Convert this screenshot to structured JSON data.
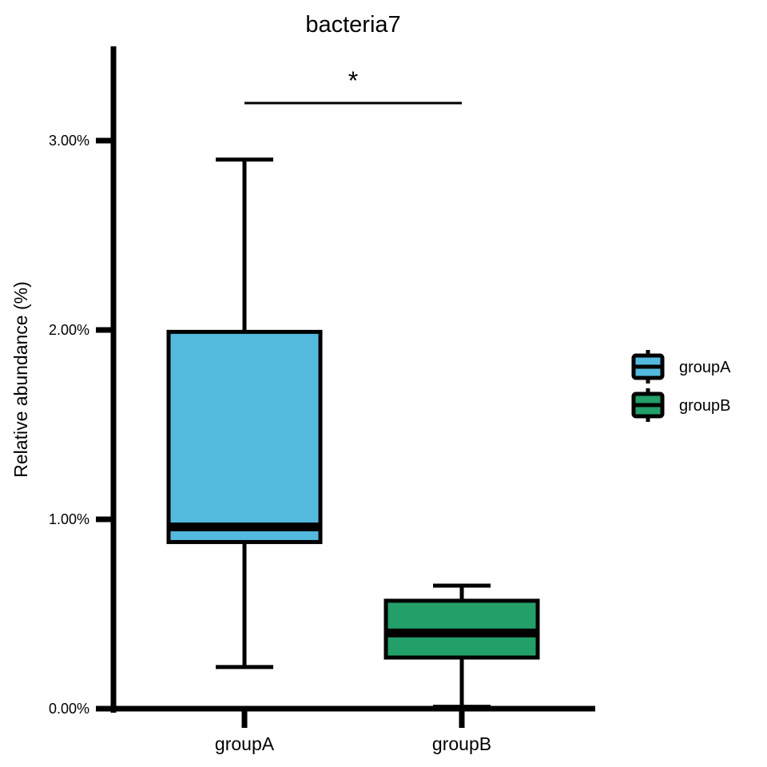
{
  "chart_data": {
    "type": "boxplot",
    "title": "bacteria7",
    "xlabel": "",
    "ylabel": "Relative abundance (%)",
    "categories": [
      "groupA",
      "groupB"
    ],
    "ylim": [
      0,
      0.035
    ],
    "yticks": [
      0,
      0.01,
      0.02,
      0.03
    ],
    "ytick_labels": [
      "0.00%",
      "1.00%",
      "2.00%",
      "3.00%"
    ],
    "grid": false,
    "boxes": [
      {
        "group": "groupA",
        "min": 0.0022,
        "q1": 0.0088,
        "median": 0.0096,
        "q3": 0.0199,
        "max": 0.029,
        "color": "#53B9DD"
      },
      {
        "group": "groupB",
        "min": 0.0001,
        "q1": 0.0027,
        "median": 0.004,
        "q3": 0.0057,
        "max": 0.0065,
        "color": "#239F6A"
      }
    ],
    "significance": {
      "label": "*",
      "between": [
        "groupA",
        "groupB"
      ]
    },
    "legend": {
      "position": "right",
      "entries": [
        "groupA",
        "groupB"
      ]
    }
  }
}
